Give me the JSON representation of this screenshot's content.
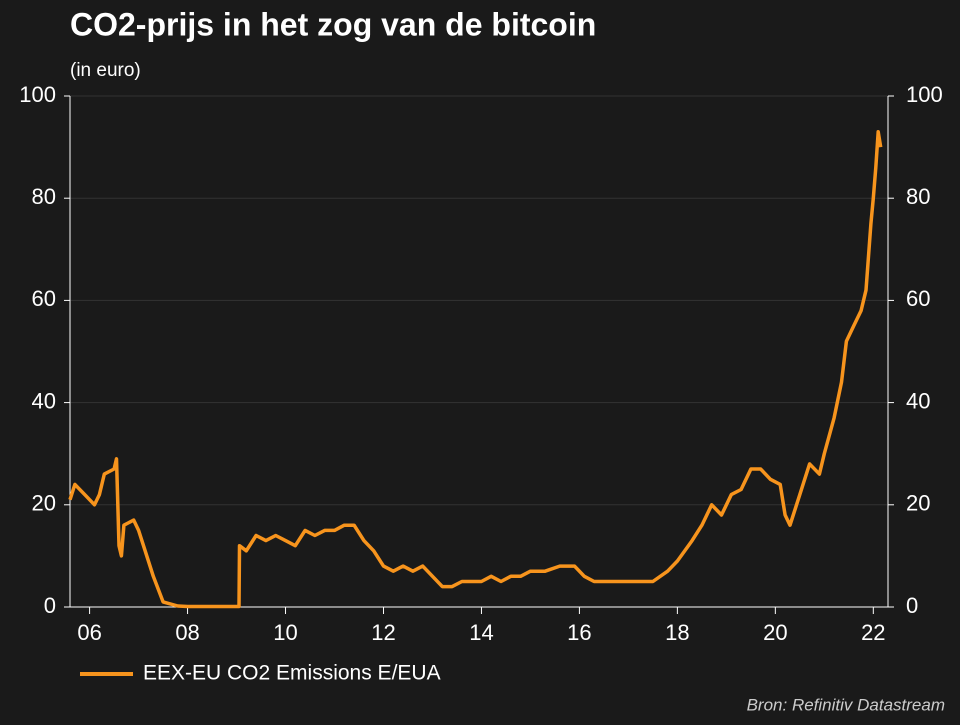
{
  "chart_data": {
    "type": "line",
    "title": "CO2-prijs in het zog van de bitcoin",
    "subtitle": "(in euro)",
    "source": "Bron: Refinitiv Datastream",
    "xlim": [
      2005.6,
      2022.3
    ],
    "xticks": [
      {
        "value": 2006,
        "label": "06"
      },
      {
        "value": 2008,
        "label": "08"
      },
      {
        "value": 2010,
        "label": "10"
      },
      {
        "value": 2012,
        "label": "12"
      },
      {
        "value": 2014,
        "label": "14"
      },
      {
        "value": 2016,
        "label": "16"
      },
      {
        "value": 2018,
        "label": "18"
      },
      {
        "value": 2020,
        "label": "20"
      },
      {
        "value": 2022,
        "label": "22"
      }
    ],
    "ylim": [
      0,
      100
    ],
    "yticks": [
      0,
      20,
      40,
      60,
      80,
      100
    ],
    "y2lim": [
      0,
      100
    ],
    "y2ticks": [
      0,
      20,
      40,
      60,
      80,
      100
    ],
    "grid": true,
    "legend": "bottom-left",
    "x": [
      2005.6,
      2005.7,
      2005.9,
      2006.0,
      2006.1,
      2006.2,
      2006.3,
      2006.5,
      2006.55,
      2006.6,
      2006.65,
      2006.7,
      2006.9,
      2007.0,
      2007.1,
      2007.3,
      2007.5,
      2007.8,
      2008.0,
      2009.0,
      2009.05,
      2009.06,
      2009.2,
      2009.4,
      2009.6,
      2009.8,
      2010.0,
      2010.2,
      2010.4,
      2010.6,
      2010.8,
      2011.0,
      2011.2,
      2011.4,
      2011.6,
      2011.8,
      2012.0,
      2012.2,
      2012.4,
      2012.6,
      2012.8,
      2013.0,
      2013.2,
      2013.4,
      2013.6,
      2013.8,
      2014.0,
      2014.2,
      2014.4,
      2014.6,
      2014.8,
      2015.0,
      2015.3,
      2015.6,
      2015.9,
      2016.1,
      2016.3,
      2016.6,
      2016.9,
      2017.2,
      2017.5,
      2017.8,
      2018.0,
      2018.3,
      2018.5,
      2018.7,
      2018.9,
      2019.1,
      2019.3,
      2019.5,
      2019.7,
      2019.9,
      2020.1,
      2020.2,
      2020.3,
      2020.5,
      2020.7,
      2020.9,
      2021.0,
      2021.2,
      2021.35,
      2021.45,
      2021.6,
      2021.75,
      2021.85,
      2021.95,
      2022.0,
      2022.05,
      2022.1,
      2022.15
    ],
    "series": [
      {
        "name": "EEX-EU CO2 Emissions E/EUA",
        "color": "#f7941d",
        "values": [
          21,
          24,
          22,
          21,
          20,
          22,
          26,
          27,
          29,
          12,
          10,
          16,
          17,
          15,
          12,
          6,
          1,
          0.2,
          0.1,
          0.1,
          0.1,
          12,
          11,
          14,
          13,
          14,
          13,
          12,
          15,
          14,
          15,
          15,
          16,
          16,
          13,
          11,
          8,
          7,
          8,
          7,
          8,
          6,
          4,
          4,
          5,
          5,
          5,
          6,
          5,
          6,
          6,
          7,
          7,
          8,
          8,
          6,
          5,
          5,
          5,
          5,
          5,
          7,
          9,
          13,
          16,
          20,
          18,
          22,
          23,
          27,
          27,
          25,
          24,
          18,
          16,
          22,
          28,
          26,
          30,
          37,
          44,
          52,
          55,
          58,
          62,
          75,
          80,
          86,
          93,
          90
        ]
      }
    ]
  }
}
